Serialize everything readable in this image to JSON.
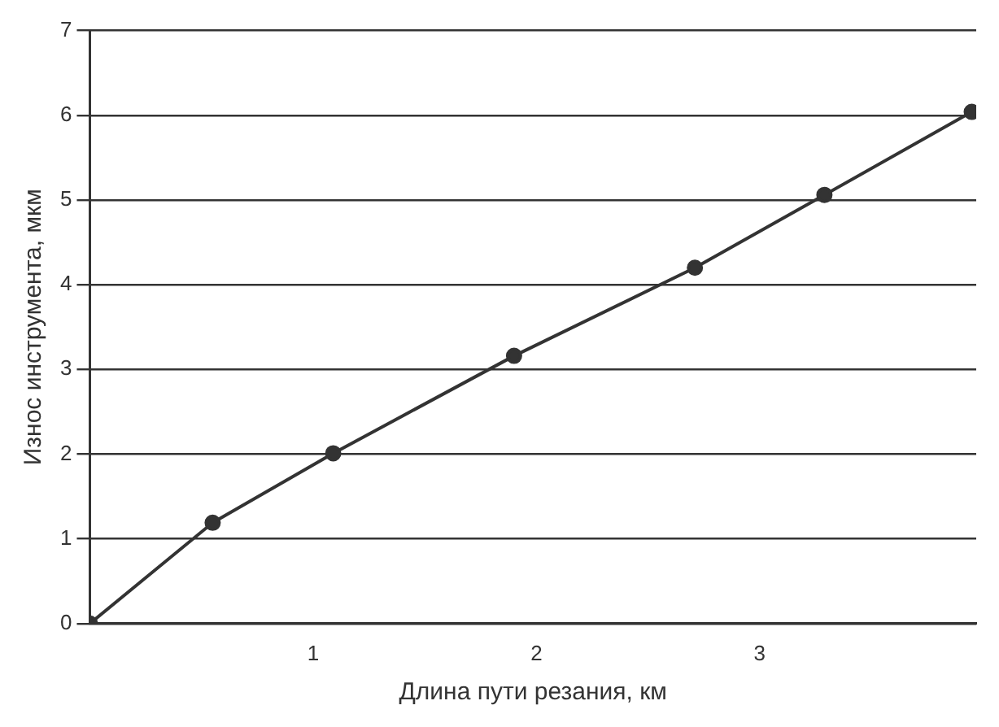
{
  "chart_data": {
    "type": "line",
    "xlabel": "Длина пути резания, км",
    "ylabel": "Износ инструмента, мкм",
    "x": [
      0,
      0.55,
      1.09,
      1.9,
      2.71,
      3.29,
      3.95
    ],
    "series": [
      {
        "color": "#333333",
        "values": [
          0,
          1.19,
          2.01,
          3.16,
          4.2,
          5.06,
          6.04
        ]
      }
    ],
    "xlim": [
      0,
      3.97
    ],
    "xticks": [
      1,
      2,
      3
    ],
    "ylim": [
      0,
      7
    ],
    "yticks": [
      0,
      1,
      2,
      3,
      4,
      5,
      6,
      7
    ],
    "grid": "y",
    "legend": false,
    "marker": "circle",
    "line_style": "solid"
  }
}
